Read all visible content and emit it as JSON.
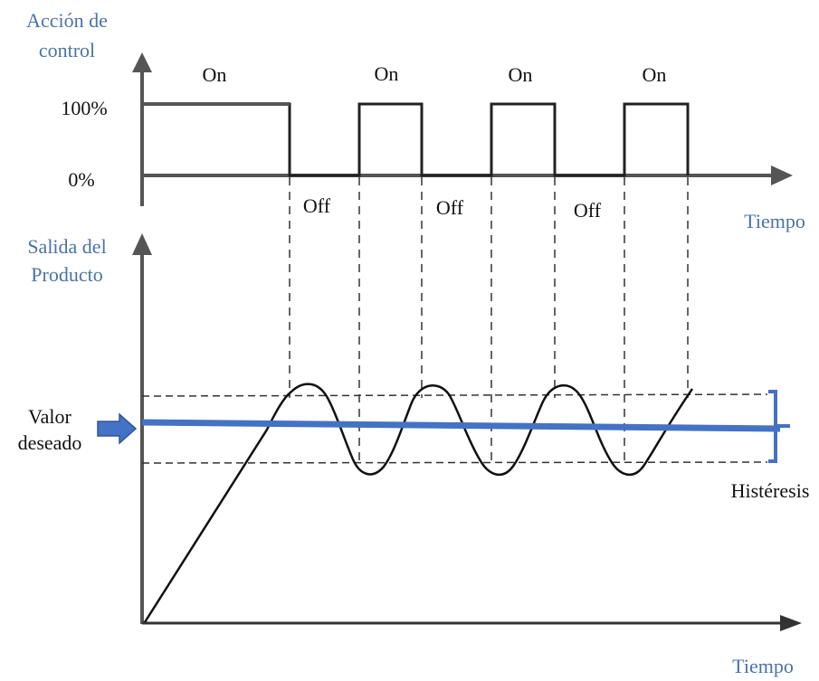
{
  "top_axis": {
    "title_line1": "Acción de",
    "title_line2": "control",
    "level_high": "100%",
    "level_low": "0%",
    "x_label": "Tiempo",
    "on_labels": [
      "On",
      "On",
      "On",
      "On"
    ],
    "off_labels": [
      "Off",
      "Off",
      "Off"
    ]
  },
  "bottom_axis": {
    "title_line1": "Salida del",
    "title_line2": "Producto",
    "x_label": "Tiempo",
    "setpoint_line1": "Valor",
    "setpoint_line2": "deseado",
    "hysteresis_label": "Histéresis"
  },
  "colors": {
    "axis": "#555555",
    "signal": "#111111",
    "setpoint": "#4472c4",
    "label_blue": "#4a73a8"
  }
}
